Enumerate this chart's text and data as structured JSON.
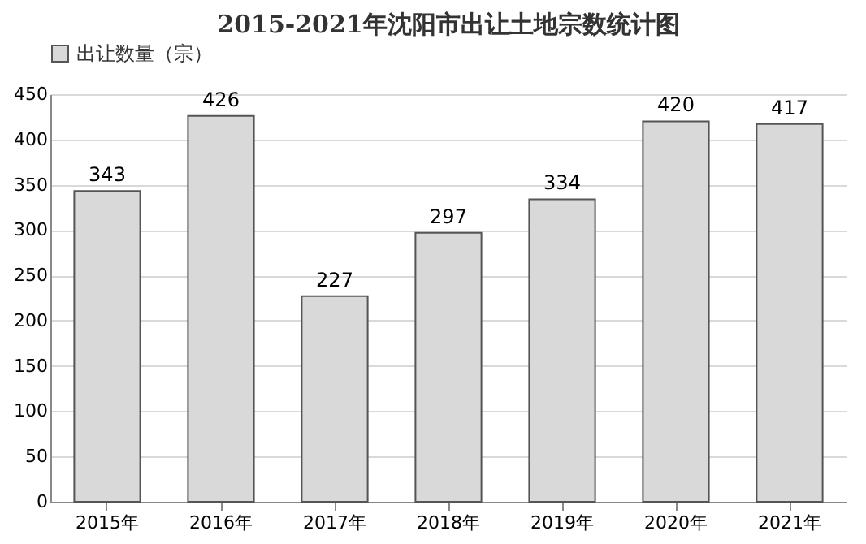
{
  "chart_data": {
    "type": "bar",
    "title": "2015-2021年沈阳市出让土地宗数统计图",
    "categories": [
      "2015年",
      "2016年",
      "2017年",
      "2018年",
      "2019年",
      "2020年",
      "2021年"
    ],
    "series": [
      {
        "name": "出让数量（宗）",
        "color": "#d9d9d9",
        "values": [
          343,
          426,
          227,
          297,
          334,
          420,
          417
        ]
      }
    ],
    "ylim": [
      0,
      450
    ],
    "yticks": [
      0,
      50,
      100,
      150,
      200,
      250,
      300,
      350,
      400,
      450
    ],
    "grid": "y",
    "legend": "top",
    "data_labels": true
  }
}
